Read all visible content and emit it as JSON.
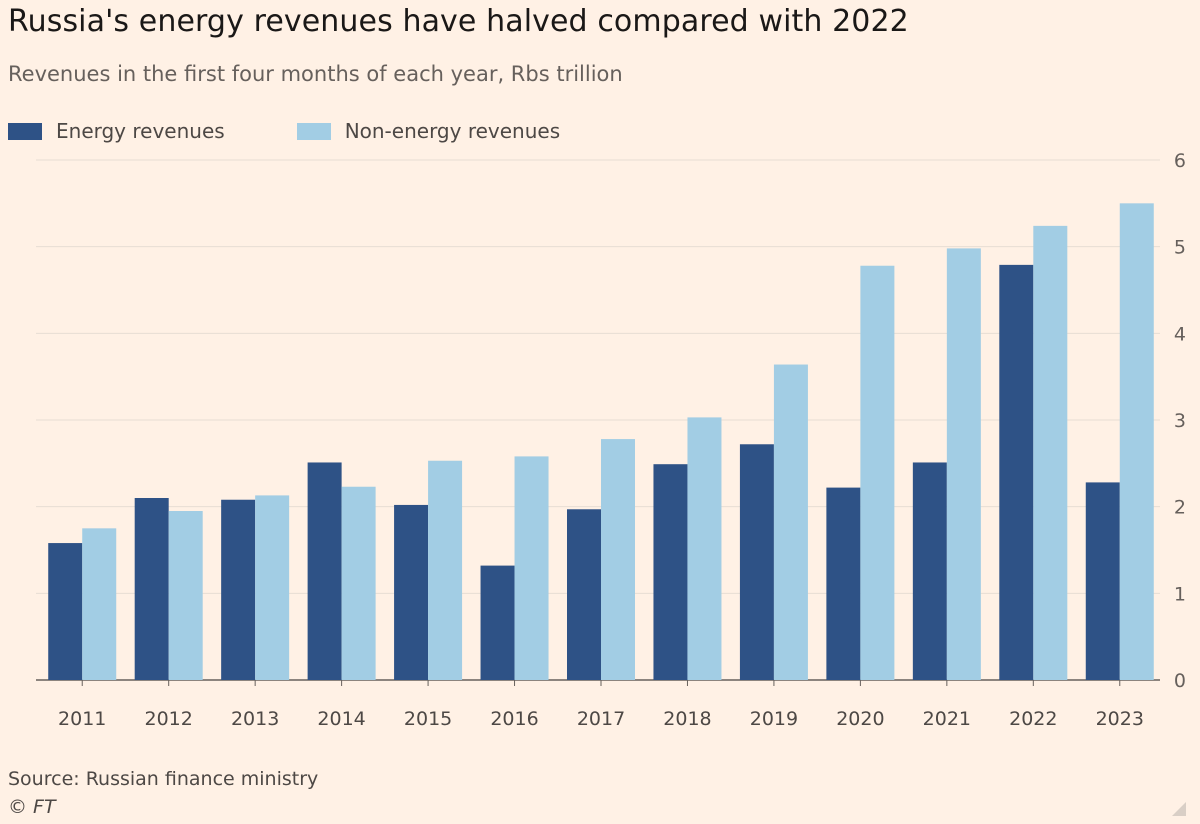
{
  "chart_data": {
    "type": "bar",
    "title": "Russia's energy revenues have halved compared with 2022",
    "subtitle": "Revenues in the first four months of each year, Rbs trillion",
    "categories": [
      "2011",
      "2012",
      "2013",
      "2014",
      "2015",
      "2016",
      "2017",
      "2018",
      "2019",
      "2020",
      "2021",
      "2022",
      "2023"
    ],
    "series": [
      {
        "name": "Energy revenues",
        "color": "#2e5286",
        "values": [
          1.58,
          2.1,
          2.08,
          2.51,
          2.02,
          1.32,
          1.97,
          2.49,
          2.72,
          2.22,
          2.51,
          4.79,
          2.28
        ]
      },
      {
        "name": "Non-energy revenues",
        "color": "#a2cde4",
        "values": [
          1.75,
          1.95,
          2.13,
          2.23,
          2.53,
          2.58,
          2.78,
          3.03,
          3.64,
          4.78,
          4.98,
          5.24,
          5.5
        ]
      }
    ],
    "ylim": [
      0,
      6
    ],
    "yticks": [
      "0",
      "1",
      "2",
      "3",
      "4",
      "5",
      "6"
    ],
    "y_axis_side": "right",
    "grid": true,
    "legend_placement": "top-left",
    "xlabel": "",
    "ylabel": ""
  },
  "footer": {
    "source": "Source: Russian finance ministry",
    "copyright": "© FT"
  },
  "colors": {
    "background": "#fff1e5",
    "gridline": "#e7ddd3",
    "axis": "#66605c"
  }
}
